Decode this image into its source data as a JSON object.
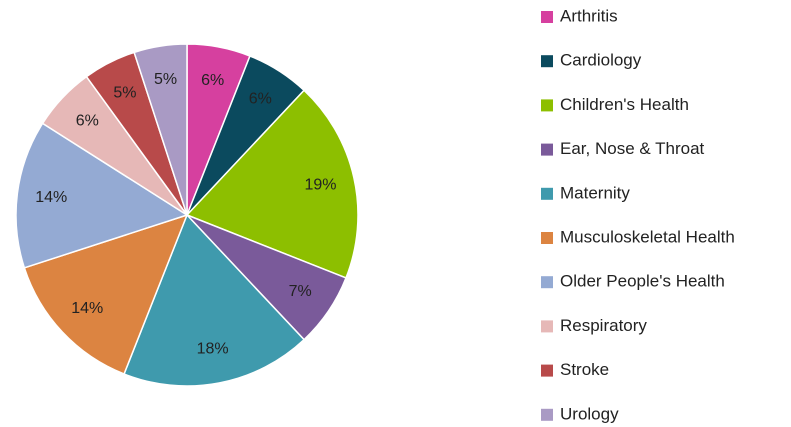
{
  "chart_data": {
    "type": "pie",
    "categories": [
      "Arthritis",
      "Cardiology",
      "Children's Health",
      "Ear, Nose & Throat",
      "Maternity",
      "Musculoskeletal Health",
      "Older People's Health",
      "Respiratory",
      "Stroke",
      "Urology"
    ],
    "values": [
      6,
      6,
      19,
      7,
      18,
      14,
      14,
      6,
      5,
      5
    ],
    "value_labels": [
      "6%",
      "6%",
      "19%",
      "7%",
      "18%",
      "14%",
      "14%",
      "6%",
      "5%",
      "5%"
    ],
    "colors": [
      "#d6409f",
      "#0b4a5e",
      "#8dbf00",
      "#7a5a9a",
      "#3f9aad",
      "#dc8441",
      "#94aad3",
      "#e6b8b7",
      "#b84a4a",
      "#a99ac4"
    ],
    "legend": "right"
  }
}
